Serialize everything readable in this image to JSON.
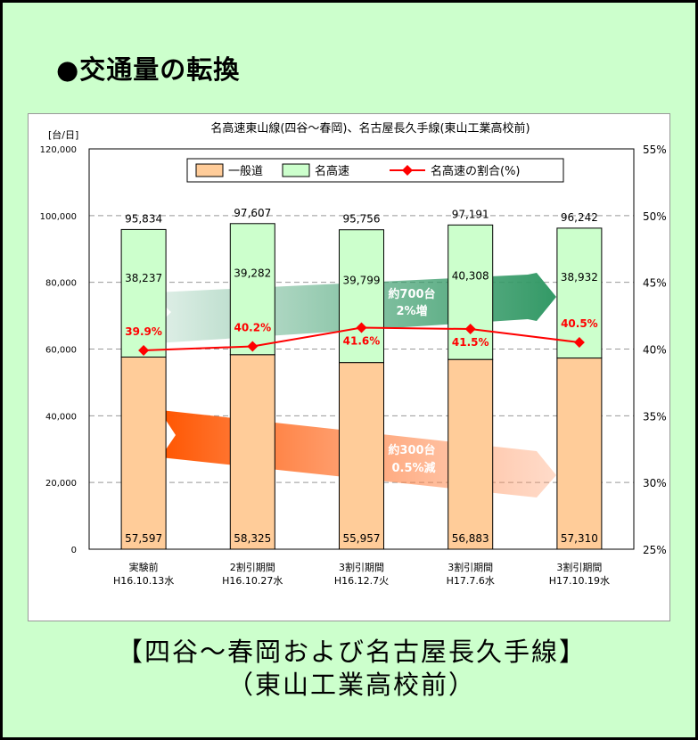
{
  "heading": "●交通量の転換",
  "caption": {
    "line1": "【四谷～春岡および名古屋長久手線】",
    "line2": "（東山工業高校前）"
  },
  "chart_data": {
    "type": "bar",
    "title": "名高速東山線(四谷～春岡)、名古屋長久手線(東山工業高校前)",
    "ylabel": "[台/日]",
    "ylim": [
      0,
      120000
    ],
    "y_ticks": [
      "0",
      "20,000",
      "40,000",
      "60,000",
      "80,000",
      "100,000",
      "120,000"
    ],
    "y2lim": [
      25,
      55
    ],
    "y2_ticks": [
      "25%",
      "30%",
      "35%",
      "40%",
      "45%",
      "50%",
      "55%"
    ],
    "categories": [
      [
        "実験前",
        "H16.10.13水"
      ],
      [
        "2割引期間",
        "H16.10.27水"
      ],
      [
        "3割引期間",
        "H16.12.7火"
      ],
      [
        "3割引期間",
        "H17.7.6水"
      ],
      [
        "3割引期間",
        "H17.10.19水"
      ]
    ],
    "series": [
      {
        "name": "一般道",
        "values": [
          57597,
          58325,
          55957,
          56883,
          57310
        ],
        "labels": [
          "57,597",
          "58,325",
          "55,957",
          "56,883",
          "57,310"
        ],
        "color": "#ffcc99"
      },
      {
        "name": "名高速",
        "values": [
          38237,
          39282,
          39799,
          40308,
          38932
        ],
        "labels": [
          "38,237",
          "39,282",
          "39,799",
          "40,308",
          "38,932"
        ],
        "color": "#ccffcc"
      }
    ],
    "totals": [
      "95,834",
      "97,607",
      "95,756",
      "97,191",
      "96,242"
    ],
    "ratio": {
      "name": "名高速の割合(%)",
      "values": [
        39.9,
        40.2,
        41.6,
        41.5,
        40.5
      ],
      "labels": [
        "39.9%",
        "40.2%",
        "41.6%",
        "41.5%",
        "40.5%"
      ],
      "color": "#ff0000"
    },
    "annotations": [
      {
        "line1": "約700台",
        "line2": "2%増",
        "color": "#339966"
      },
      {
        "line1": "約300台",
        "line2": "0.5%減",
        "color": "#ff6600"
      }
    ],
    "legend": "top-center",
    "grid": "dashed horizontal"
  }
}
